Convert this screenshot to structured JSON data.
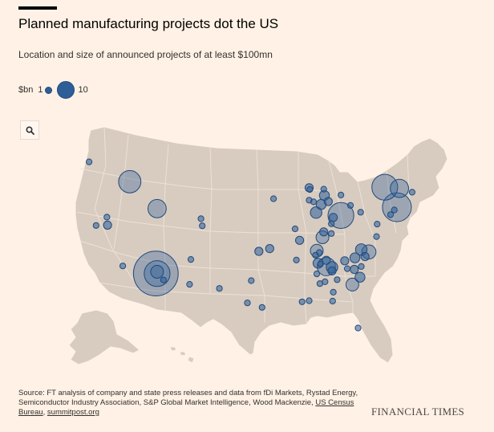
{
  "header": {
    "title": "Planned manufacturing projects dot the US",
    "subtitle": "Location and size of announced projects of at least $100mn"
  },
  "legend": {
    "unit_label": "$bn",
    "min_label": "1",
    "max_label": "10"
  },
  "toolbar": {
    "search_icon": "search-icon"
  },
  "colors": {
    "background": "#FFF1E5",
    "land": "#D8CBBF",
    "state_border": "#FFF1E5",
    "bubble_fill": "#2E5E98",
    "bubble_stroke": "#1F4A7E"
  },
  "map_data": {
    "projection": "albers-usa",
    "projects": [
      {
        "lat": 45.6,
        "lon": -122.6,
        "value_bn": 1
      },
      {
        "lat": 43.6,
        "lon": -116.2,
        "value_bn": 15
      },
      {
        "lat": 38.5,
        "lon": -121.5,
        "value_bn": 1
      },
      {
        "lat": 38.6,
        "lon": -119.7,
        "value_bn": 2
      },
      {
        "lat": 39.5,
        "lon": -119.8,
        "value_bn": 1
      },
      {
        "lat": 40.7,
        "lon": -111.9,
        "value_bn": 10
      },
      {
        "lat": 39.7,
        "lon": -105.0,
        "value_bn": 1
      },
      {
        "lat": 38.9,
        "lon": -104.8,
        "value_bn": 1
      },
      {
        "lat": 34.1,
        "lon": -117.3,
        "value_bn": 1
      },
      {
        "lat": 33.4,
        "lon": -112.1,
        "value_bn": 60
      },
      {
        "lat": 33.4,
        "lon": -111.9,
        "value_bn": 20
      },
      {
        "lat": 33.6,
        "lon": -111.9,
        "value_bn": 5
      },
      {
        "lat": 32.7,
        "lon": -110.9,
        "value_bn": 1
      },
      {
        "lat": 35.1,
        "lon": -106.6,
        "value_bn": 1
      },
      {
        "lat": 32.3,
        "lon": -106.8,
        "value_bn": 1
      },
      {
        "lat": 31.9,
        "lon": -102.1,
        "value_bn": 1
      },
      {
        "lat": 30.3,
        "lon": -97.7,
        "value_bn": 1
      },
      {
        "lat": 29.8,
        "lon": -95.4,
        "value_bn": 1
      },
      {
        "lat": 32.8,
        "lon": -97.1,
        "value_bn": 1
      },
      {
        "lat": 36.1,
        "lon": -95.9,
        "value_bn": 2
      },
      {
        "lat": 36.4,
        "lon": -94.2,
        "value_bn": 2
      },
      {
        "lat": 42.0,
        "lon": -93.6,
        "value_bn": 1
      },
      {
        "lat": 41.8,
        "lon": -88.0,
        "value_bn": 1
      },
      {
        "lat": 43.2,
        "lon": -88.0,
        "value_bn": 2
      },
      {
        "lat": 43.0,
        "lon": -87.9,
        "value_bn": 1
      },
      {
        "lat": 42.3,
        "lon": -85.6,
        "value_bn": 3
      },
      {
        "lat": 42.3,
        "lon": -83.0,
        "value_bn": 1
      },
      {
        "lat": 43.0,
        "lon": -85.7,
        "value_bn": 1
      },
      {
        "lat": 41.6,
        "lon": -87.3,
        "value_bn": 1
      },
      {
        "lat": 41.3,
        "lon": -86.1,
        "value_bn": 3
      },
      {
        "lat": 41.6,
        "lon": -85.0,
        "value_bn": 2
      },
      {
        "lat": 40.4,
        "lon": -86.9,
        "value_bn": 4
      },
      {
        "lat": 40.0,
        "lon": -83.0,
        "value_bn": 20
      },
      {
        "lat": 41.1,
        "lon": -81.5,
        "value_bn": 1
      },
      {
        "lat": 39.8,
        "lon": -84.2,
        "value_bn": 2
      },
      {
        "lat": 39.1,
        "lon": -84.5,
        "value_bn": 1
      },
      {
        "lat": 38.2,
        "lon": -85.7,
        "value_bn": 2
      },
      {
        "lat": 37.6,
        "lon": -85.9,
        "value_bn": 5
      },
      {
        "lat": 38.0,
        "lon": -84.5,
        "value_bn": 1
      },
      {
        "lat": 38.6,
        "lon": -90.2,
        "value_bn": 1
      },
      {
        "lat": 37.3,
        "lon": -89.5,
        "value_bn": 2
      },
      {
        "lat": 43.0,
        "lon": -76.1,
        "value_bn": 20
      },
      {
        "lat": 42.8,
        "lon": -73.8,
        "value_bn": 10
      },
      {
        "lat": 42.3,
        "lon": -71.8,
        "value_bn": 1
      },
      {
        "lat": 40.7,
        "lon": -74.2,
        "value_bn": 25
      },
      {
        "lat": 40.4,
        "lon": -74.6,
        "value_bn": 1
      },
      {
        "lat": 39.9,
        "lon": -75.2,
        "value_bn": 1
      },
      {
        "lat": 40.3,
        "lon": -79.9,
        "value_bn": 1
      },
      {
        "lat": 36.1,
        "lon": -86.8,
        "value_bn": 5
      },
      {
        "lat": 35.9,
        "lon": -86.4,
        "value_bn": 1
      },
      {
        "lat": 35.1,
        "lon": -90.0,
        "value_bn": 1
      },
      {
        "lat": 35.0,
        "lon": -85.3,
        "value_bn": 2
      },
      {
        "lat": 35.6,
        "lon": -87.0,
        "value_bn": 1
      },
      {
        "lat": 34.7,
        "lon": -86.6,
        "value_bn": 3
      },
      {
        "lat": 34.6,
        "lon": -86.2,
        "value_bn": 1
      },
      {
        "lat": 34.3,
        "lon": -85.3,
        "value_bn": 10
      },
      {
        "lat": 34.2,
        "lon": -84.4,
        "value_bn": 4
      },
      {
        "lat": 33.8,
        "lon": -84.4,
        "value_bn": 2
      },
      {
        "lat": 33.5,
        "lon": -86.8,
        "value_bn": 1
      },
      {
        "lat": 32.4,
        "lon": -86.3,
        "value_bn": 1
      },
      {
        "lat": 32.6,
        "lon": -85.5,
        "value_bn": 1
      },
      {
        "lat": 34.0,
        "lon": -82.0,
        "value_bn": 1
      },
      {
        "lat": 34.9,
        "lon": -82.4,
        "value_bn": 2
      },
      {
        "lat": 35.2,
        "lon": -80.8,
        "value_bn": 3
      },
      {
        "lat": 35.8,
        "lon": -78.6,
        "value_bn": 6
      },
      {
        "lat": 36.1,
        "lon": -79.8,
        "value_bn": 4
      },
      {
        "lat": 35.3,
        "lon": -79.2,
        "value_bn": 2
      },
      {
        "lat": 34.2,
        "lon": -79.8,
        "value_bn": 1
      },
      {
        "lat": 33.9,
        "lon": -80.9,
        "value_bn": 2
      },
      {
        "lat": 33.0,
        "lon": -80.0,
        "value_bn": 3
      },
      {
        "lat": 32.2,
        "lon": -81.2,
        "value_bn": 5
      },
      {
        "lat": 32.8,
        "lon": -83.6,
        "value_bn": 1
      },
      {
        "lat": 31.4,
        "lon": -84.2,
        "value_bn": 1
      },
      {
        "lat": 30.4,
        "lon": -89.1,
        "value_bn": 1
      },
      {
        "lat": 30.5,
        "lon": -88.0,
        "value_bn": 1
      },
      {
        "lat": 30.4,
        "lon": -84.3,
        "value_bn": 1
      },
      {
        "lat": 27.3,
        "lon": -80.3,
        "value_bn": 1
      },
      {
        "lat": 37.5,
        "lon": -77.4,
        "value_bn": 1
      },
      {
        "lat": 38.9,
        "lon": -77.3,
        "value_bn": 1
      }
    ]
  },
  "footer": {
    "source_text": "Source: FT analysis of company and state press releases and data from fDi Markets, Rystad Energy, Semiconductor Industry Association, S&P Global Market Intelligence, Wood Mackenzie, ",
    "source_link_census": "US Census Bureau",
    "source_sep": ", ",
    "source_link_summit": "summitpost.org",
    "logo": "FINANCIAL TIMES"
  }
}
